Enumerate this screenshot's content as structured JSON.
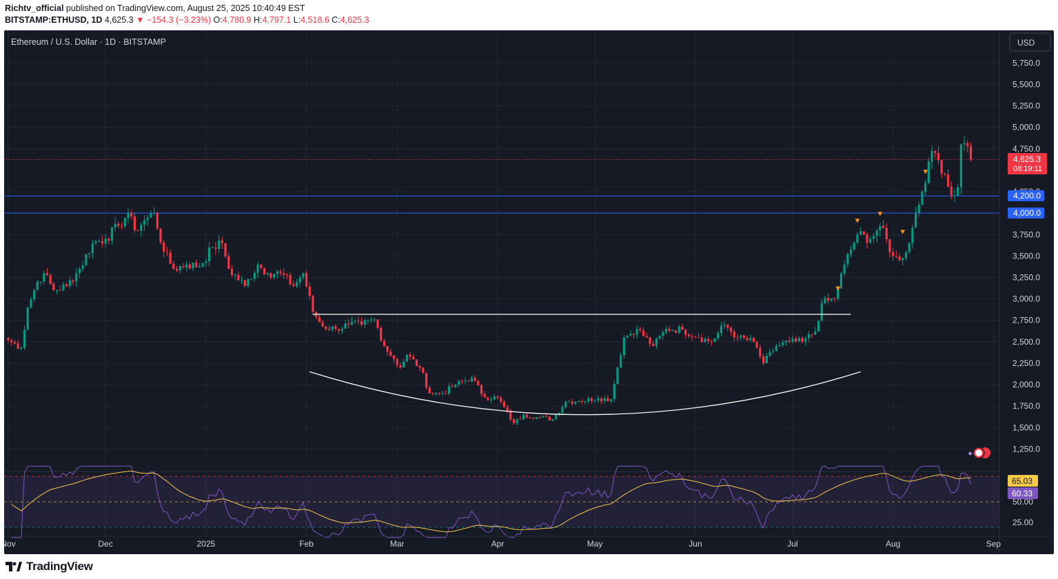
{
  "header": {
    "author": "Richtv_official",
    "published": " published on TradingView.com, August 25, 2025 10:40:49 EST",
    "symbol": "BITSTAMP:ETHUSD, 1D",
    "last": " 4,625.3 ",
    "change": "−154.3 (−3.23%)",
    "o_label": " O:",
    "o": "4,780.9",
    "h_label": " H:",
    "h": "4,797.1",
    "l_label": " L:",
    "l": "4,518.6",
    "c_label": " C:",
    "c": "4,625.3"
  },
  "chart_title": "Ethereum / U.S. Dollar · 1D · BITSTAMP",
  "currency_button": "USD",
  "price_label": "4,625.3",
  "countdown": "08:19:11",
  "level_labels": [
    "4,200.0",
    "4,000.0"
  ],
  "rsi_labels": [
    "65.03",
    "60.33"
  ],
  "footer_brand": "TradingView",
  "colors": {
    "up": "#089981",
    "down": "#f23645",
    "level_line": "#2962ff",
    "rsi": "#7e57c2",
    "rsi_ma": "#f7c948",
    "background": "#161a25"
  },
  "chart_data": {
    "type": "candlestick",
    "title": "Ethereum / U.S. Dollar · 1D · BITSTAMP",
    "x_ticks": [
      "Nov",
      "Dec",
      "2025",
      "Feb",
      "Mar",
      "Apr",
      "May",
      "Jun",
      "Jul",
      "Aug",
      "Sep"
    ],
    "y_ticks": [
      "5,750.0",
      "5,500.0",
      "5,250.0",
      "5,000.0",
      "4,750.0",
      "4,250.0",
      "3,750.0",
      "3,500.0",
      "3,250.0",
      "3,000.0",
      "2,750.0",
      "2,500.0",
      "2,250.0",
      "2,000.0",
      "1,750.0",
      "1,500.0",
      "1,250.0"
    ],
    "ylim": [
      1150,
      5950
    ],
    "horizontal_levels": [
      4200,
      4000
    ],
    "resistance_line": 2820,
    "close_prices": [
      {
        "d": "2024-11-01",
        "c": 2520
      },
      {
        "d": "2024-11-05",
        "c": 2430
      },
      {
        "d": "2024-11-07",
        "c": 2900
      },
      {
        "d": "2024-11-10",
        "c": 3200
      },
      {
        "d": "2024-11-12",
        "c": 3300
      },
      {
        "d": "2024-11-15",
        "c": 3100
      },
      {
        "d": "2024-11-19",
        "c": 3150
      },
      {
        "d": "2024-11-23",
        "c": 3350
      },
      {
        "d": "2024-11-27",
        "c": 3650
      },
      {
        "d": "2024-12-01",
        "c": 3700
      },
      {
        "d": "2024-12-05",
        "c": 3850
      },
      {
        "d": "2024-12-08",
        "c": 4000
      },
      {
        "d": "2024-12-10",
        "c": 3800
      },
      {
        "d": "2024-12-14",
        "c": 3950
      },
      {
        "d": "2024-12-16",
        "c": 4000
      },
      {
        "d": "2024-12-19",
        "c": 3550
      },
      {
        "d": "2024-12-22",
        "c": 3350
      },
      {
        "d": "2024-12-26",
        "c": 3400
      },
      {
        "d": "2024-12-30",
        "c": 3380
      },
      {
        "d": "2025-01-03",
        "c": 3600
      },
      {
        "d": "2025-01-06",
        "c": 3650
      },
      {
        "d": "2025-01-08",
        "c": 3350
      },
      {
        "d": "2025-01-13",
        "c": 3150
      },
      {
        "d": "2025-01-17",
        "c": 3400
      },
      {
        "d": "2025-01-20",
        "c": 3300
      },
      {
        "d": "2025-01-24",
        "c": 3300
      },
      {
        "d": "2025-01-28",
        "c": 3150
      },
      {
        "d": "2025-01-31",
        "c": 3300
      },
      {
        "d": "2025-02-03",
        "c": 2850
      },
      {
        "d": "2025-02-06",
        "c": 2680
      },
      {
        "d": "2025-02-10",
        "c": 2650
      },
      {
        "d": "2025-02-14",
        "c": 2700
      },
      {
        "d": "2025-02-18",
        "c": 2700
      },
      {
        "d": "2025-02-22",
        "c": 2760
      },
      {
        "d": "2025-02-25",
        "c": 2450
      },
      {
        "d": "2025-02-28",
        "c": 2300
      },
      {
        "d": "2025-03-02",
        "c": 2200
      },
      {
        "d": "2025-03-04",
        "c": 2350
      },
      {
        "d": "2025-03-08",
        "c": 2200
      },
      {
        "d": "2025-03-11",
        "c": 1900
      },
      {
        "d": "2025-03-15",
        "c": 1900
      },
      {
        "d": "2025-03-19",
        "c": 2000
      },
      {
        "d": "2025-03-24",
        "c": 2080
      },
      {
        "d": "2025-03-28",
        "c": 1850
      },
      {
        "d": "2025-04-01",
        "c": 1850
      },
      {
        "d": "2025-04-06",
        "c": 1550
      },
      {
        "d": "2025-04-09",
        "c": 1650
      },
      {
        "d": "2025-04-13",
        "c": 1620
      },
      {
        "d": "2025-04-18",
        "c": 1600
      },
      {
        "d": "2025-04-22",
        "c": 1800
      },
      {
        "d": "2025-04-26",
        "c": 1810
      },
      {
        "d": "2025-05-02",
        "c": 1840
      },
      {
        "d": "2025-05-06",
        "c": 1830
      },
      {
        "d": "2025-05-08",
        "c": 2200
      },
      {
        "d": "2025-05-10",
        "c": 2550
      },
      {
        "d": "2025-05-14",
        "c": 2650
      },
      {
        "d": "2025-05-19",
        "c": 2450
      },
      {
        "d": "2025-05-23",
        "c": 2650
      },
      {
        "d": "2025-05-28",
        "c": 2640
      },
      {
        "d": "2025-06-02",
        "c": 2550
      },
      {
        "d": "2025-06-06",
        "c": 2500
      },
      {
        "d": "2025-06-10",
        "c": 2700
      },
      {
        "d": "2025-06-14",
        "c": 2550
      },
      {
        "d": "2025-06-19",
        "c": 2500
      },
      {
        "d": "2025-06-22",
        "c": 2250
      },
      {
        "d": "2025-06-26",
        "c": 2450
      },
      {
        "d": "2025-06-30",
        "c": 2500
      },
      {
        "d": "2025-07-04",
        "c": 2500
      },
      {
        "d": "2025-07-08",
        "c": 2620
      },
      {
        "d": "2025-07-10",
        "c": 2950
      },
      {
        "d": "2025-07-14",
        "c": 3000
      },
      {
        "d": "2025-07-17",
        "c": 3400
      },
      {
        "d": "2025-07-21",
        "c": 3750
      },
      {
        "d": "2025-07-25",
        "c": 3700
      },
      {
        "d": "2025-07-28",
        "c": 3850
      },
      {
        "d": "2025-08-01",
        "c": 3500
      },
      {
        "d": "2025-08-03",
        "c": 3450
      },
      {
        "d": "2025-08-06",
        "c": 3650
      },
      {
        "d": "2025-08-08",
        "c": 4000
      },
      {
        "d": "2025-08-10",
        "c": 4250
      },
      {
        "d": "2025-08-12",
        "c": 4600
      },
      {
        "d": "2025-08-14",
        "c": 4700
      },
      {
        "d": "2025-08-17",
        "c": 4450
      },
      {
        "d": "2025-08-19",
        "c": 4200
      },
      {
        "d": "2025-08-21",
        "c": 4300
      },
      {
        "d": "2025-08-22",
        "c": 4800
      },
      {
        "d": "2025-08-24",
        "c": 4780
      },
      {
        "d": "2025-08-25",
        "c": 4625.3
      }
    ],
    "rsi": {
      "y_ticks": [
        "50.00",
        "25.00"
      ],
      "bands": [
        70,
        50,
        30
      ],
      "current": 60.33,
      "ma": 65.03
    }
  }
}
